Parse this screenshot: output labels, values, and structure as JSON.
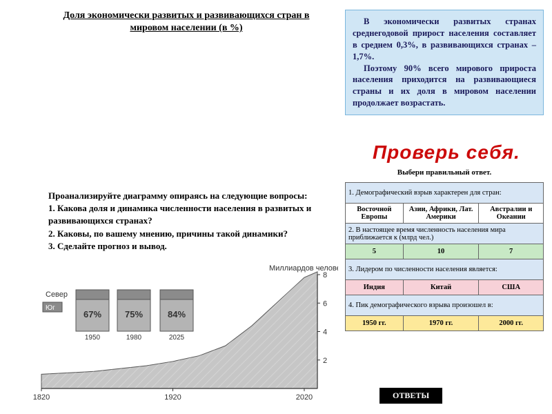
{
  "title": "Доля экономически развитых и развивающихся стран в мировом населении (в %)",
  "blueBox": {
    "p1": "В экономически развитых странах среднегодовой прирост населения составляет в среднем 0,3%, в развивающихся странах – 1,7%.",
    "p2": "Поэтому 90% всего мирового прироста населения приходится на развивающиеся страны и их доля в мировом населении продолжает возрастать."
  },
  "checkTitle": "Проверь себя.",
  "choose": "Выбери правильный ответ.",
  "quiz": {
    "q1": "1. Демографический взрыв характерен для стран:",
    "a1": [
      "Восточной Европы",
      "Азии, Африки, Лат. Америки",
      "Австралии и Океании"
    ],
    "q2": "2. В настоящее время численность населения мира приближается к (млрд чел.)",
    "a2": [
      "5",
      "10",
      "7"
    ],
    "q3": "3. Лидером по численности населения является:",
    "a3": [
      "Индия",
      "Китай",
      "США"
    ],
    "q4": "4. Пик демографического взрыва произошел в:",
    "a4": [
      "1950 гг.",
      "1970 гг.",
      "2000 гг."
    ]
  },
  "questions": {
    "intro": "Проанализируйте диаграмму опираясь на следующие вопросы:",
    "q1": "1. Какова доля и динамика численности населения в развитых и развивающихся странах?",
    "q2": "2. Каковы, по вашему мнению, причины такой динамики?",
    "q3": "3. Сделайте прогноз и вывод."
  },
  "chart": {
    "type": "area",
    "yAxisLabel": "Миллиардов человек",
    "northLabel": "Север",
    "southLabel": "Юг",
    "xTicks": [
      "1820",
      "1920",
      "2020"
    ],
    "yTicks": [
      "2",
      "4",
      "6",
      "8"
    ],
    "yMax": 8,
    "xMin": 1820,
    "xMax": 2030,
    "bars": [
      {
        "year": "1950",
        "percent": "67%"
      },
      {
        "year": "1980",
        "percent": "75%"
      },
      {
        "year": "2025",
        "percent": "84%"
      }
    ],
    "colors": {
      "areaFill": "#c6c6c6",
      "areaStroke": "#555555",
      "barFill": "#b4b4b4",
      "barStroke": "#555555",
      "barInnerFill": "#8b8b8b",
      "text": "#333333",
      "axis": "#333333"
    },
    "series": [
      {
        "x": 1820,
        "y": 1.0
      },
      {
        "x": 1860,
        "y": 1.2
      },
      {
        "x": 1900,
        "y": 1.6
      },
      {
        "x": 1920,
        "y": 1.9
      },
      {
        "x": 1940,
        "y": 2.3
      },
      {
        "x": 1960,
        "y": 3.0
      },
      {
        "x": 1980,
        "y": 4.4
      },
      {
        "x": 2000,
        "y": 6.1
      },
      {
        "x": 2020,
        "y": 7.8
      },
      {
        "x": 2030,
        "y": 8.2
      }
    ]
  },
  "answersBtn": "ОТВЕТЫ"
}
